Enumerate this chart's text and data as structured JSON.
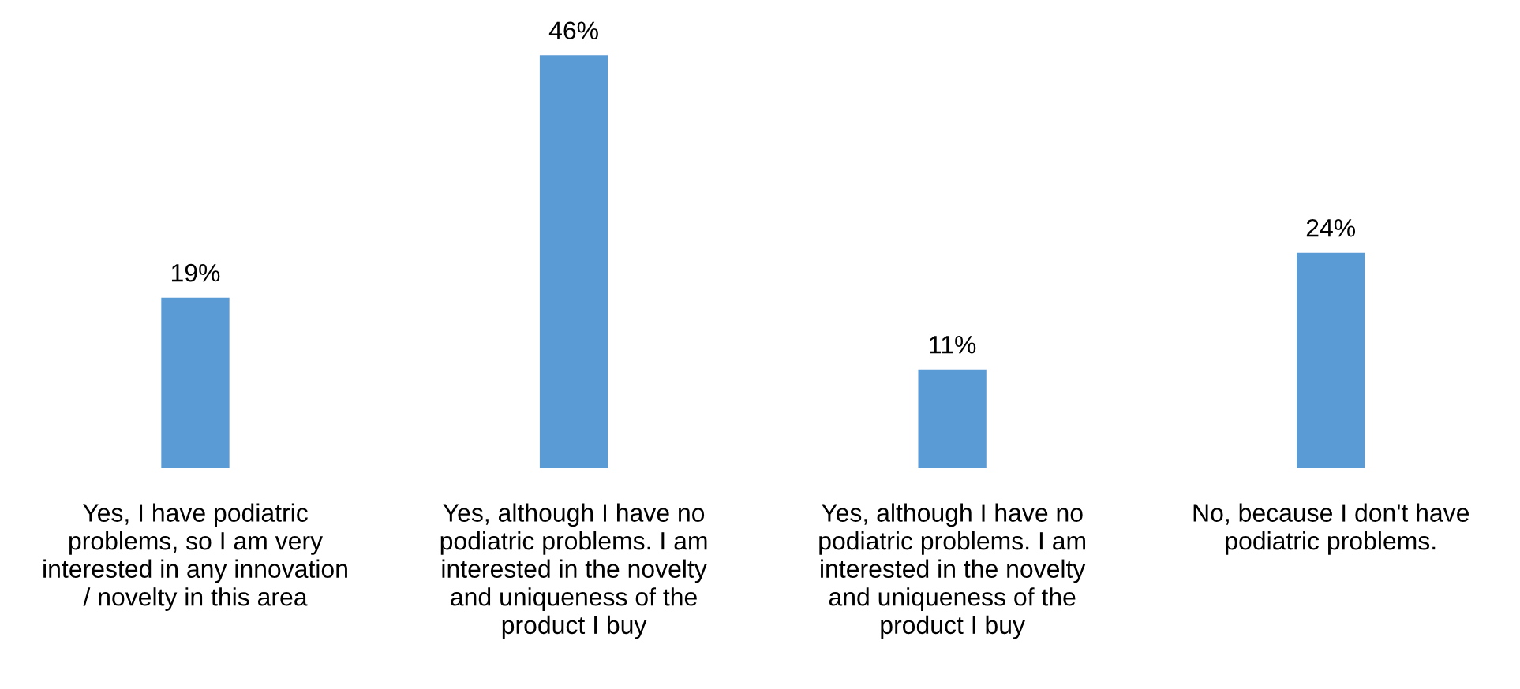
{
  "chart_data": {
    "type": "bar",
    "categories": [
      "Yes, I have podiatric\nproblems, so I am very\ninterested in any innovation\n/ novelty in this area",
      "Yes, although I have no\npodiatric problems. I am\ninterested in the novelty\nand uniqueness of the\nproduct I buy",
      "Yes, although I have no\npodiatric problems. I am\ninterested in the novelty\nand uniqueness of the\nproduct I buy",
      "No, because I don't have\npodiatric problems."
    ],
    "values": [
      19,
      46,
      11,
      24
    ],
    "value_labels": [
      "19%",
      "46%",
      "11%",
      "24%"
    ],
    "color": "#5b9bd5",
    "tick_labels": "x",
    "grid": false,
    "legend": false
  }
}
